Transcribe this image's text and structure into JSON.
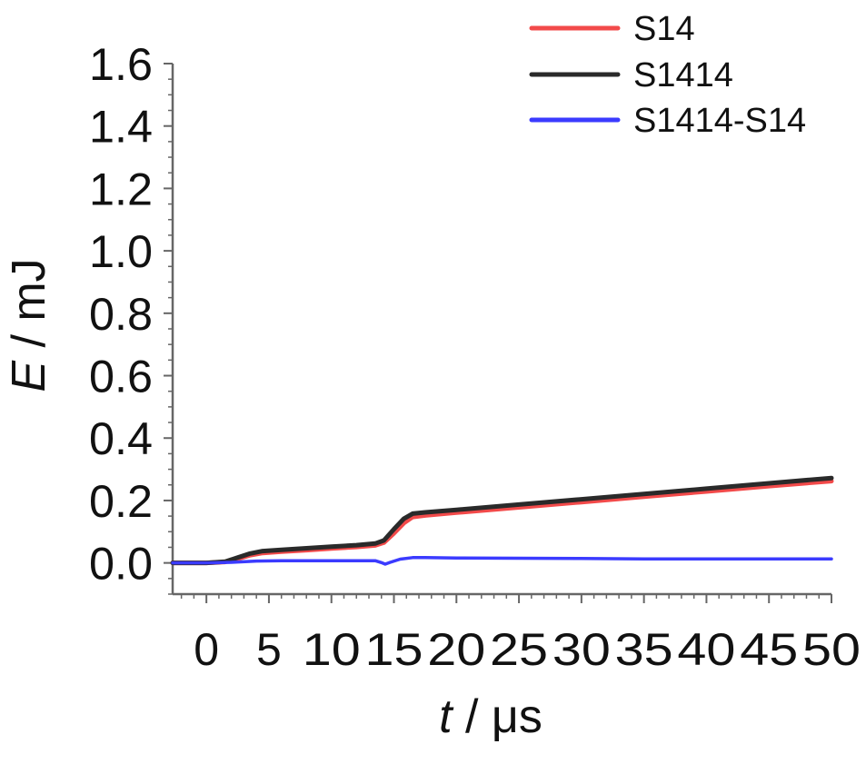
{
  "chart_data": {
    "type": "line",
    "xlabel": {
      "symbol": "t",
      "unit": " / μs"
    },
    "ylabel": {
      "symbol": "E",
      "unit": " / mJ"
    },
    "xlim": [
      -2.7,
      50
    ],
    "ylim": [
      -0.1,
      1.6
    ],
    "xticks": [
      0,
      5,
      10,
      15,
      20,
      25,
      30,
      35,
      40,
      45,
      50
    ],
    "xtick_labels": [
      "0",
      "5",
      "10",
      "15",
      "20",
      "25",
      "30",
      "35",
      "40",
      "45",
      "50"
    ],
    "yticks": [
      0.0,
      0.2,
      0.4,
      0.6,
      0.8,
      1.0,
      1.2,
      1.4,
      1.6
    ],
    "ytick_labels": [
      "0.0",
      "0.2",
      "0.4",
      "0.6",
      "0.8",
      "1.0",
      "1.2",
      "1.4",
      "1.6"
    ],
    "x_minor_step": 1,
    "y_minor_step": 0.05,
    "legend": {
      "placement": "top-right"
    },
    "grid": false,
    "series": [
      {
        "name": "S14",
        "color": "#f24a4a",
        "x": [
          -2.7,
          0,
          1.5,
          2.5,
          3.5,
          4.5,
          6,
          8,
          10,
          12,
          13.5,
          14.2,
          15,
          15.8,
          16.5,
          17.5,
          20,
          25,
          30,
          35,
          40,
          45,
          50
        ],
        "y": [
          0.0,
          0.0,
          0.003,
          0.013,
          0.025,
          0.032,
          0.036,
          0.041,
          0.046,
          0.051,
          0.056,
          0.065,
          0.095,
          0.128,
          0.147,
          0.152,
          0.161,
          0.178,
          0.195,
          0.212,
          0.229,
          0.246,
          0.262
        ]
      },
      {
        "name": "S1414",
        "color": "#2a2a2a",
        "x": [
          -2.7,
          0,
          1.5,
          2.5,
          3.5,
          4.5,
          6,
          8,
          10,
          12,
          13.5,
          14.2,
          15,
          15.8,
          16.5,
          17.5,
          20,
          25,
          30,
          35,
          40,
          45,
          50
        ],
        "y": [
          0.0,
          0.0,
          0.004,
          0.017,
          0.03,
          0.038,
          0.042,
          0.047,
          0.052,
          0.057,
          0.062,
          0.072,
          0.108,
          0.142,
          0.158,
          0.162,
          0.17,
          0.187,
          0.204,
          0.221,
          0.238,
          0.255,
          0.272
        ]
      },
      {
        "name": "S1414-S14",
        "color": "#3b3bff",
        "x": [
          -2.7,
          0,
          2,
          4,
          6,
          10,
          13.5,
          14,
          14.3,
          14.7,
          15.5,
          16.5,
          17.5,
          20,
          25,
          30,
          35,
          40,
          45,
          50
        ],
        "y": [
          0.0,
          0.0,
          0.002,
          0.006,
          0.007,
          0.007,
          0.007,
          0.001,
          -0.004,
          0.002,
          0.012,
          0.017,
          0.017,
          0.016,
          0.015,
          0.014,
          0.013,
          0.013,
          0.013,
          0.013
        ]
      }
    ]
  }
}
